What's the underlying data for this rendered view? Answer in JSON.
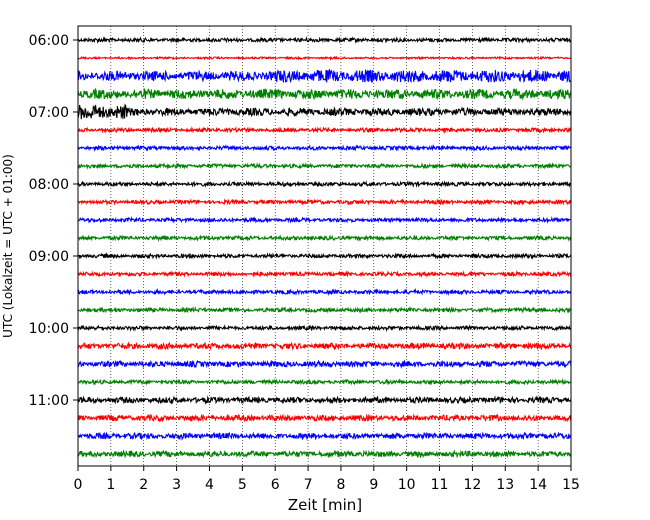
{
  "chart_data": {
    "type": "line",
    "title": "",
    "xlabel": "Zeit  [min]",
    "ylabel": "UTC (Lokalzeit = UTC + 01:00)",
    "xlim": [
      0,
      15
    ],
    "x_ticks": [
      0,
      1,
      2,
      3,
      4,
      5,
      6,
      7,
      8,
      9,
      10,
      11,
      12,
      13,
      14,
      15
    ],
    "y_tick_labels": [
      "06:00",
      "07:00",
      "08:00",
      "09:00",
      "10:00",
      "11:00"
    ],
    "y_tick_rows": [
      0,
      4,
      8,
      12,
      16,
      20
    ],
    "grid": "vertical dotted lines at each minute",
    "color_cycle": [
      "#000000",
      "#ff0000",
      "#0000ff",
      "#008000"
    ],
    "trace_start_times": [
      "06:00",
      "06:15",
      "06:30",
      "06:45",
      "07:00",
      "07:15",
      "07:30",
      "07:45",
      "08:00",
      "08:15",
      "08:30",
      "08:45",
      "09:00",
      "09:15",
      "09:30",
      "09:45",
      "10:00",
      "10:15",
      "10:30",
      "10:45",
      "11:00",
      "11:15",
      "11:30",
      "11:45"
    ],
    "trace_amplitude": [
      2,
      1,
      5,
      5,
      4,
      2,
      2,
      2,
      2,
      2,
      2,
      2,
      2,
      2,
      2,
      2,
      2,
      3,
      3,
      2,
      3,
      3,
      3,
      3
    ]
  }
}
